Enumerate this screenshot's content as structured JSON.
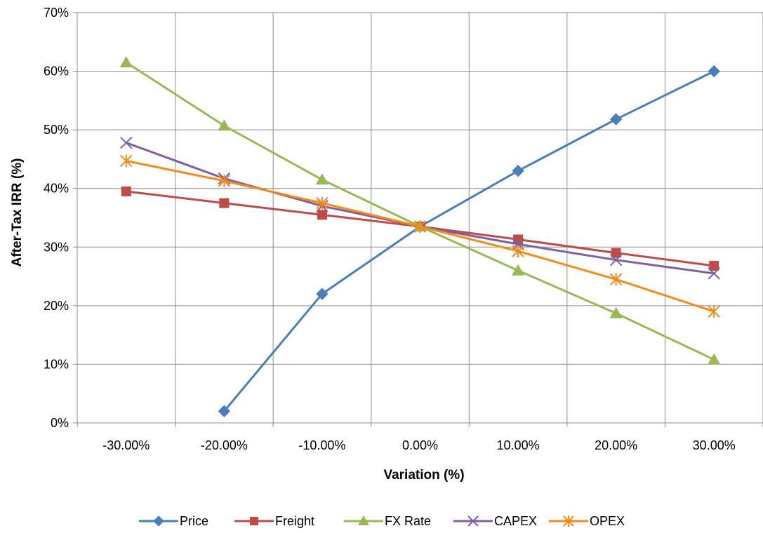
{
  "chart_data": {
    "type": "line",
    "title": "",
    "xlabel": "Variation (%)",
    "ylabel": "After-Tax IRR (%)",
    "categories": [
      "-30.00%",
      "-20.00%",
      "-10.00%",
      "0.00%",
      "10.00%",
      "20.00%",
      "30.00%"
    ],
    "y_ticks": [
      "0%",
      "10%",
      "20%",
      "30%",
      "40%",
      "50%",
      "60%",
      "70%"
    ],
    "ylim": [
      0,
      70
    ],
    "grid": true,
    "legend_position": "bottom",
    "series": [
      {
        "name": "Price",
        "color": "#4a7ebb",
        "marker": "diamond",
        "values": [
          null,
          2,
          22,
          33.5,
          43,
          51.8,
          60
        ]
      },
      {
        "name": "Freight",
        "color": "#be4b48",
        "marker": "square",
        "values": [
          39.5,
          37.5,
          35.5,
          33.5,
          31.3,
          29,
          26.8
        ]
      },
      {
        "name": "FX Rate",
        "color": "#98b954",
        "marker": "triangle",
        "values": [
          61.5,
          50.7,
          41.5,
          33.5,
          26,
          18.7,
          10.8
        ]
      },
      {
        "name": "CAPEX",
        "color": "#7d60a0",
        "marker": "x",
        "values": [
          47.8,
          41.7,
          37,
          33.5,
          30.5,
          27.8,
          25.5
        ]
      },
      {
        "name": "OPEX",
        "color": "#f38a1a",
        "marker": "asterisk",
        "values": [
          44.7,
          41.3,
          37.5,
          33.5,
          29.3,
          24.5,
          19
        ]
      }
    ]
  }
}
